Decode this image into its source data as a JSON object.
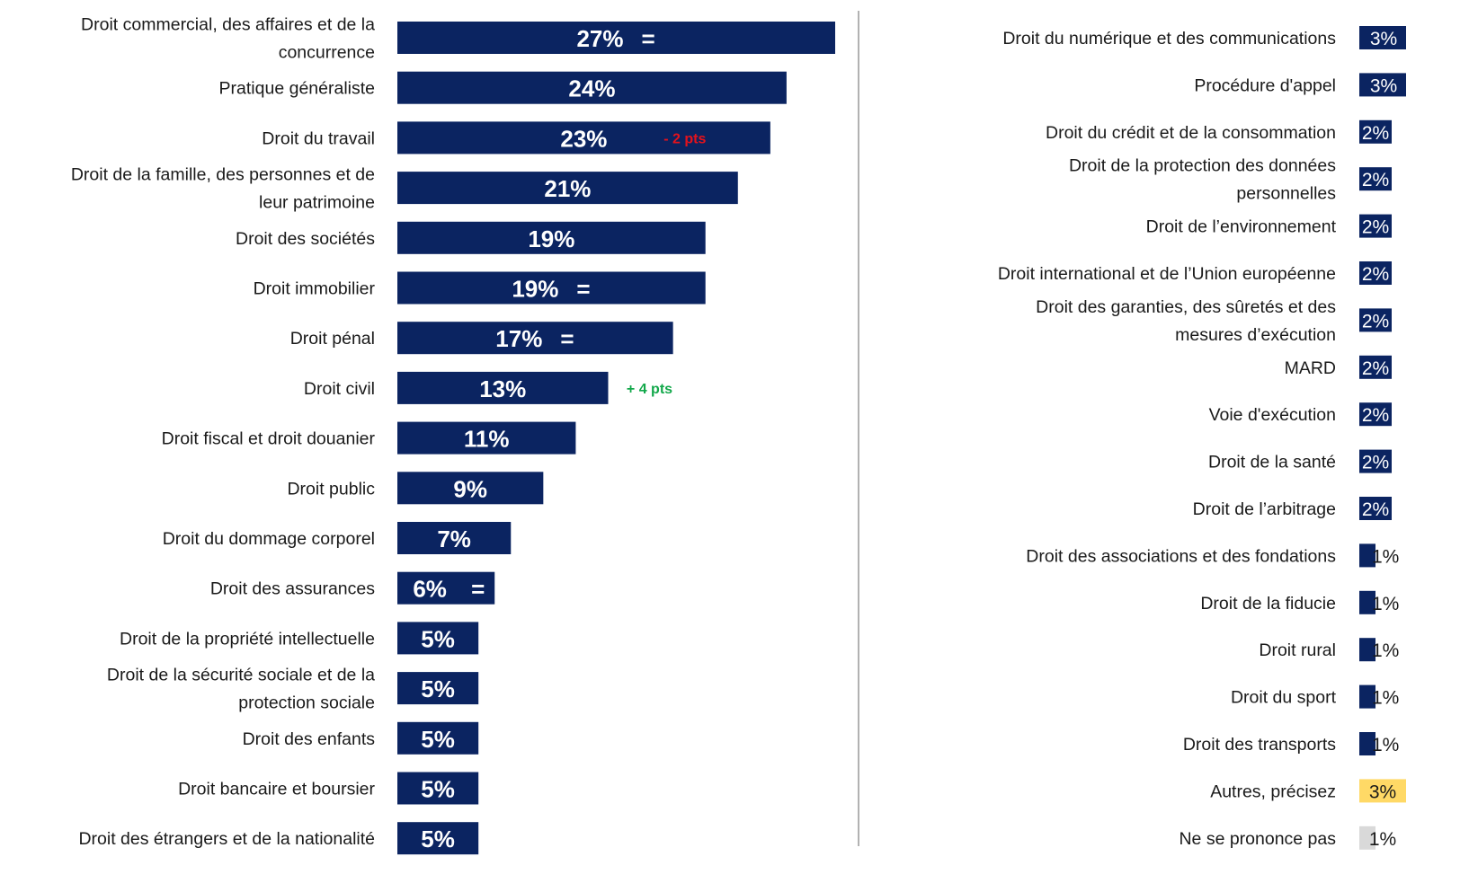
{
  "colors": {
    "bar": "#0b2461",
    "label": "#1a1a1a",
    "decrease": "#e5121b",
    "increase": "#12a84a",
    "autres": "#ffd966",
    "nsp": "#d9d9d9",
    "divider": "#7f7f7f"
  },
  "chart_data": [
    {
      "type": "bar",
      "orientation": "horizontal",
      "unit": "%",
      "xlim": [
        0,
        27
      ],
      "categories": [
        [
          "Droit commercial, des affaires et de la",
          "concurrence"
        ],
        [
          "Pratique généraliste"
        ],
        [
          "Droit du travail"
        ],
        [
          "Droit de la famille, des personnes et de",
          "leur patrimoine"
        ],
        [
          "Droit des sociétés"
        ],
        [
          "Droit immobilier"
        ],
        [
          "Droit pénal"
        ],
        [
          "Droit civil"
        ],
        [
          "Droit fiscal et droit douanier"
        ],
        [
          "Droit public"
        ],
        [
          "Droit du dommage corporel"
        ],
        [
          "Droit des assurances"
        ],
        [
          "Droit de la propriété intellectuelle"
        ],
        [
          "Droit de la sécurité sociale et de la",
          "protection sociale"
        ],
        [
          "Droit des enfants"
        ],
        [
          "Droit bancaire et boursier"
        ],
        [
          "Droit des étrangers et de la nationalité"
        ]
      ],
      "values": [
        27,
        24,
        23,
        21,
        19,
        19,
        17,
        13,
        11,
        9,
        7,
        6,
        5,
        5,
        5,
        5,
        5
      ],
      "labels": [
        "27%",
        "24%",
        "23%",
        "21%",
        "19%",
        "19%",
        "17%",
        "13%",
        "11%",
        "9%",
        "7%",
        "6%",
        "5%",
        "5%",
        "5%",
        "5%",
        "5%"
      ],
      "annotations": [
        {
          "index": 0,
          "text": "=",
          "kind": "equal"
        },
        {
          "index": 2,
          "text": "- 2 pts",
          "kind": "decrease"
        },
        {
          "index": 5,
          "text": "=",
          "kind": "equal"
        },
        {
          "index": 6,
          "text": "=",
          "kind": "equal"
        },
        {
          "index": 7,
          "text": "+ 4 pts",
          "kind": "increase"
        },
        {
          "index": 11,
          "text": "=",
          "kind": "equal"
        }
      ]
    },
    {
      "type": "bar",
      "orientation": "horizontal",
      "unit": "%",
      "xlim": [
        0,
        3
      ],
      "categories": [
        [
          "Droit du numérique et des communications"
        ],
        [
          "Procédure d'appel"
        ],
        [
          "Droit du crédit et de la consommation"
        ],
        [
          "Droit de la protection des données",
          "personnelles"
        ],
        [
          "Droit de l’environnement"
        ],
        [
          "Droit international et de l’Union européenne"
        ],
        [
          "Droit des garanties, des sûretés et des",
          "mesures d’exécution"
        ],
        [
          "MARD"
        ],
        [
          "Voie d'exécution"
        ],
        [
          "Droit de la santé"
        ],
        [
          "Droit de l’arbitrage"
        ],
        [
          "Droit des associations et des fondations"
        ],
        [
          "Droit de la fiducie"
        ],
        [
          "Droit rural"
        ],
        [
          "Droit du sport"
        ],
        [
          "Droit des transports"
        ],
        [
          "Autres, précisez"
        ],
        [
          "Ne se prononce pas"
        ]
      ],
      "values": [
        3,
        3,
        2,
        2,
        2,
        2,
        2,
        2,
        2,
        2,
        2,
        1,
        1,
        1,
        1,
        1,
        3,
        1
      ],
      "labels": [
        "3%",
        "3%",
        "2%",
        "2%",
        "2%",
        "2%",
        "2%",
        "2%",
        "2%",
        "2%",
        "2%",
        "1%",
        "1%",
        "1%",
        "1%",
        "1%",
        "3%",
        "1%"
      ],
      "styles": [
        "main",
        "main",
        "main",
        "main",
        "main",
        "main",
        "main",
        "main",
        "main",
        "main",
        "main",
        "main",
        "main",
        "main",
        "main",
        "main",
        "autres",
        "nsp"
      ]
    }
  ]
}
